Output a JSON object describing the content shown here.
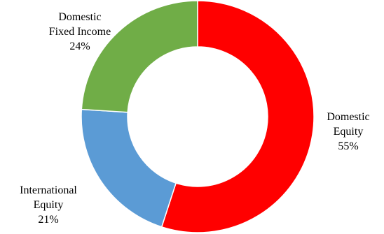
{
  "chart_data": {
    "type": "pie",
    "variant": "donut",
    "title": "",
    "legend": "none",
    "slices": [
      {
        "label_lines": [
          "Domestic",
          "Equity"
        ],
        "value": 55,
        "value_label": "55%",
        "color": "#FF0000"
      },
      {
        "label_lines": [
          "International",
          "Equity"
        ],
        "value": 21,
        "value_label": "21%",
        "color": "#5B9BD5"
      },
      {
        "label_lines": [
          "Domestic",
          "Fixed Income"
        ],
        "value": 24,
        "value_label": "24%",
        "color": "#70AD47"
      }
    ],
    "start_angle_degrees_clockwise_from_top": 0,
    "direction": "clockwise"
  }
}
